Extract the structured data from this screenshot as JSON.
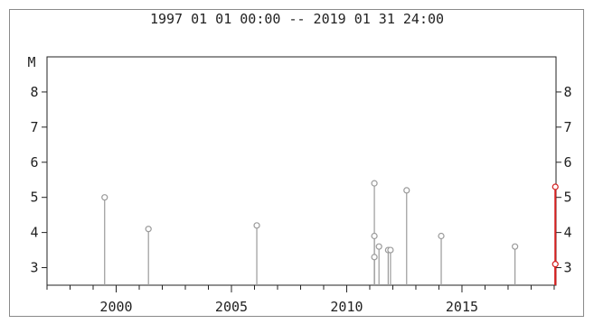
{
  "title": "1997 01 01 00:00 -- 2019 01 31 24:00",
  "chart_data": {
    "type": "scatter",
    "style": "stem",
    "title": "1997 01 01 00:00 -- 2019 01 31 24:00",
    "ylabel": "M",
    "xlim": [
      1997.0,
      2019.08
    ],
    "ylim": [
      2.5,
      9.0
    ],
    "x_ticks": [
      2000,
      2005,
      2010,
      2015
    ],
    "y_ticks": [
      3,
      4,
      5,
      6,
      7,
      8
    ],
    "grid": false,
    "series": [
      {
        "color": "#9a9a9a",
        "points": [
          {
            "x": 1999.5,
            "y": 5.0
          },
          {
            "x": 2001.4,
            "y": 4.1
          },
          {
            "x": 2006.1,
            "y": 4.2
          },
          {
            "x": 2011.2,
            "y": 5.4
          },
          {
            "x": 2011.2,
            "y": 3.9
          },
          {
            "x": 2011.2,
            "y": 3.3
          },
          {
            "x": 2011.4,
            "y": 3.6
          },
          {
            "x": 2011.8,
            "y": 3.5
          },
          {
            "x": 2011.9,
            "y": 3.5
          },
          {
            "x": 2012.6,
            "y": 5.2
          },
          {
            "x": 2014.1,
            "y": 3.9
          },
          {
            "x": 2017.3,
            "y": 3.6
          }
        ]
      },
      {
        "color": "#d42020",
        "points": [
          {
            "x": 2019.05,
            "y": 5.3
          },
          {
            "x": 2019.05,
            "y": 3.1
          }
        ]
      }
    ]
  }
}
